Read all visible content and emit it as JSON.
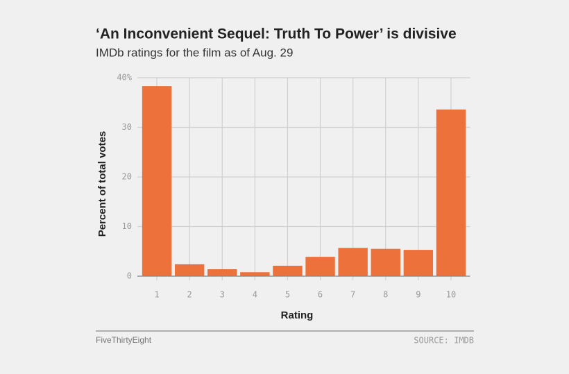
{
  "chart_data": {
    "type": "bar",
    "title": "‘An Inconvenient Sequel: Truth To Power’ is divisive",
    "subtitle": "IMDb ratings for the film as of Aug. 29",
    "x_label": "Rating",
    "y_label": "Percent of total votes",
    "categories": [
      "1",
      "2",
      "3",
      "4",
      "5",
      "6",
      "7",
      "8",
      "9",
      "10"
    ],
    "values": [
      38.3,
      2.4,
      1.4,
      0.8,
      2.1,
      3.9,
      5.7,
      5.5,
      5.3,
      33.6
    ],
    "color": "#ed713a",
    "ylim": [
      0,
      40
    ],
    "yticks": [
      0,
      10,
      20,
      30,
      {
        "value": 40,
        "label": "40%"
      }
    ],
    "grid": true
  },
  "footer": {
    "credit": "FiveThirtyEight",
    "source": "SOURCE: IMDB"
  }
}
